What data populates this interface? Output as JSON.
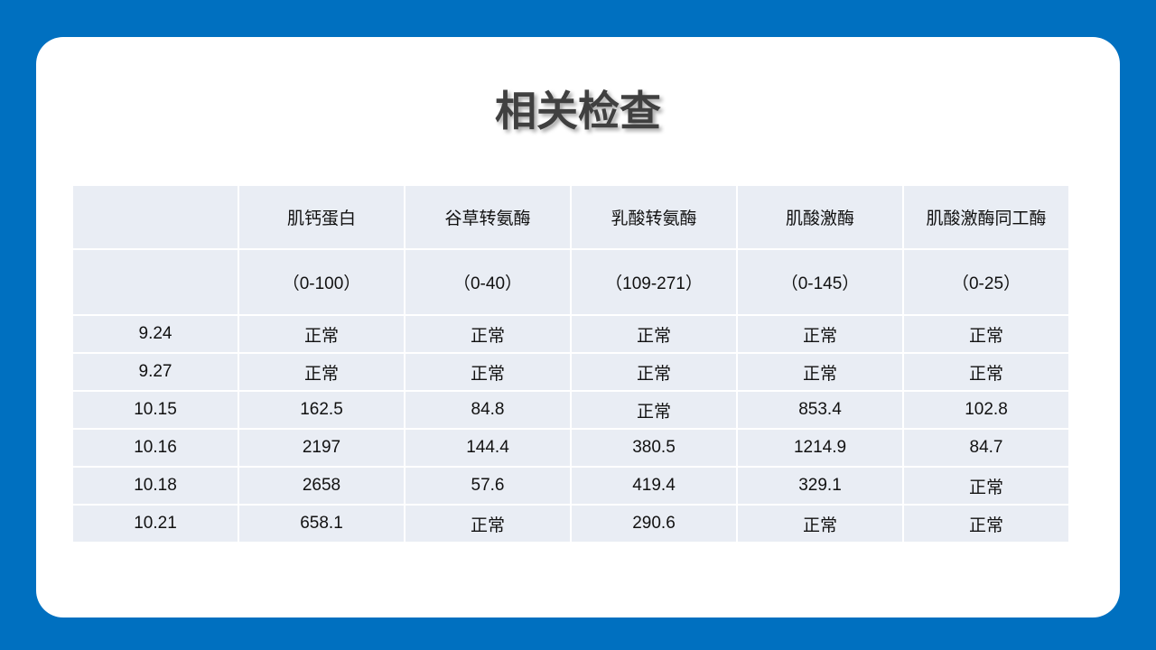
{
  "title": "相关检查",
  "table": {
    "columns": [
      "肌钙蛋白",
      "谷草转氨酶",
      "乳酸转氨酶",
      "肌酸激酶",
      "肌酸激酶同工酶"
    ],
    "ranges": [
      "（0-100）",
      "（0-40）",
      "（109-271）",
      "（0-145）",
      "（0-25）"
    ],
    "rows": [
      {
        "date": "9.24",
        "values": [
          "正常",
          "正常",
          "正常",
          "正常",
          "正常"
        ]
      },
      {
        "date": "9.27",
        "values": [
          "正常",
          "正常",
          "正常",
          "正常",
          "正常"
        ]
      },
      {
        "date": "10.15",
        "values": [
          "162.5",
          "84.8",
          "正常",
          "853.4",
          "102.8"
        ]
      },
      {
        "date": "10.16",
        "values": [
          "2197",
          "144.4",
          "380.5",
          "1214.9",
          "84.7"
        ]
      },
      {
        "date": "10.18",
        "values": [
          "2658",
          "57.6",
          "419.4",
          "329.1",
          "正常"
        ]
      },
      {
        "date": "10.21",
        "values": [
          "658.1",
          "正常",
          "290.6",
          "正常",
          "正常"
        ]
      }
    ]
  }
}
